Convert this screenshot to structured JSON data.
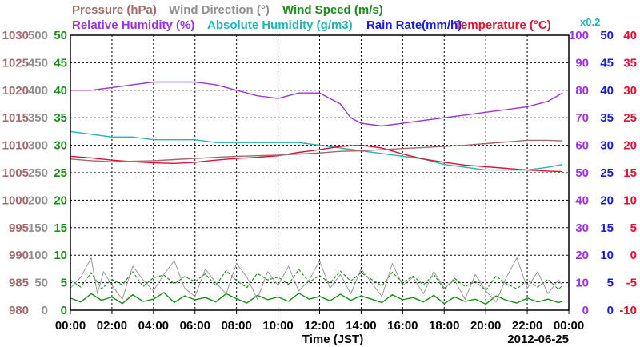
{
  "colors": {
    "pressure": "#a06a6a",
    "wind_direction": "#909090",
    "wind_speed": "#1a8c1a",
    "rel_humidity": "#9933dd",
    "abs_humidity": "#22b3b3",
    "rain": "#1a1add",
    "temperature": "#e01030",
    "axis": "#000000"
  },
  "chart_data": {
    "type": "line",
    "date": "2012-06-25",
    "xlabel": "Time (JST)",
    "x_ticks": [
      "00:00",
      "02:00",
      "04:00",
      "06:00",
      "08:00",
      "10:00",
      "12:00",
      "14:00",
      "16:00",
      "18:00",
      "20:00",
      "22:00",
      "00:00"
    ],
    "xlim_hours": [
      0,
      24
    ],
    "legend_row1": [
      {
        "label": "Pressure (hPa)",
        "color_key": "pressure"
      },
      {
        "label": "Wind Direction (°)",
        "color_key": "wind_direction"
      },
      {
        "label": "Wind Speed (m/s)",
        "color_key": "wind_speed"
      }
    ],
    "legend_row2": [
      {
        "label": "Relative Humidity (%)",
        "color_key": "rel_humidity"
      },
      {
        "label": "Absolute Humidity (g/m3)",
        "color_key": "abs_humidity"
      },
      {
        "label": "Rain Rate(mm/h)",
        "color_key": "rain"
      },
      {
        "label": "Temperature (°C)",
        "color_key": "temperature"
      }
    ],
    "scale_note": "x0.2",
    "axes": {
      "pressure": {
        "ticks": [
          "1030",
          "1025",
          "1020",
          "1015",
          "1010",
          "1005",
          "1000",
          "995",
          "990",
          "985",
          "980"
        ],
        "range": [
          980,
          1030
        ]
      },
      "wind_direction": {
        "ticks": [
          "500",
          "450",
          "400",
          "350",
          "300",
          "250",
          "200",
          "150",
          "100",
          "50",
          "0"
        ],
        "range": [
          0,
          500
        ]
      },
      "wind_speed": {
        "ticks": [
          "50",
          "45",
          "40",
          "35",
          "30",
          "25",
          "20",
          "15",
          "10",
          "5",
          "0"
        ],
        "range": [
          0,
          50
        ]
      },
      "rel_humidity": {
        "ticks": [
          "100",
          "90",
          "80",
          "70",
          "60",
          "50",
          "40",
          "30",
          "20",
          "10",
          "0"
        ],
        "range": [
          0,
          100
        ]
      },
      "rain": {
        "ticks": [
          "50",
          "45",
          "40",
          "35",
          "30",
          "25",
          "20",
          "15",
          "10",
          "5",
          "0"
        ],
        "range": [
          0,
          50
        ]
      },
      "temperature": {
        "ticks": [
          "40",
          "35",
          "30",
          "25",
          "20",
          "15",
          "10",
          "5",
          "0",
          "-5",
          "-10"
        ],
        "range": [
          -10,
          40
        ]
      }
    },
    "series": [
      {
        "name": "Relative Humidity",
        "axis": "rel_humidity",
        "color_key": "rel_humidity",
        "x": [
          0,
          1,
          2,
          3,
          4,
          5,
          6,
          7,
          8,
          9,
          10,
          11,
          12,
          13,
          13.5,
          14,
          15,
          16,
          17,
          18,
          19,
          20,
          21,
          22,
          23,
          23.7
        ],
        "y": [
          80,
          80,
          81,
          82,
          83,
          83,
          83,
          82,
          80,
          78,
          77,
          79,
          79,
          75,
          70,
          68,
          67,
          68,
          69,
          70,
          71,
          72,
          73,
          74,
          76,
          79
        ]
      },
      {
        "name": "Absolute Humidity",
        "axis": "rel_humidity",
        "color_key": "abs_humidity",
        "x": [
          0,
          1,
          2,
          3,
          4,
          5,
          6,
          7,
          8,
          9,
          10,
          11,
          12,
          13,
          14,
          15,
          16,
          17,
          18,
          19,
          20,
          21,
          22,
          23,
          23.7
        ],
        "y": [
          65,
          64,
          63,
          63,
          62,
          62,
          62,
          61,
          61,
          61,
          61,
          61,
          60,
          59,
          58,
          57,
          56,
          55,
          53,
          52,
          51,
          51,
          51,
          52,
          53
        ]
      },
      {
        "name": "Temperature",
        "axis": "temperature",
        "color_key": "temperature",
        "x": [
          0,
          1,
          2,
          3,
          4,
          5,
          6,
          7,
          8,
          9,
          10,
          11,
          12,
          13,
          14,
          15,
          16,
          17,
          18,
          19,
          20,
          21,
          22,
          23,
          23.7
        ],
        "y": [
          18.0,
          17.7,
          17.3,
          17.0,
          16.8,
          16.7,
          16.9,
          17.3,
          17.6,
          17.8,
          18.1,
          18.7,
          19.2,
          19.8,
          20.0,
          19.5,
          18.4,
          17.5,
          16.9,
          16.4,
          16.1,
          15.8,
          15.5,
          15.3,
          15.2
        ]
      },
      {
        "name": "Pressure",
        "axis": "pressure",
        "color_key": "pressure",
        "x": [
          0,
          1,
          2,
          3,
          4,
          5,
          6,
          7,
          8,
          9,
          10,
          11,
          12,
          13,
          14,
          15,
          16,
          17,
          18,
          19,
          20,
          21,
          22,
          23,
          23.7
        ],
        "y": [
          1007.5,
          1007.2,
          1007.0,
          1007.1,
          1007.2,
          1007.4,
          1007.6,
          1007.8,
          1008.0,
          1008.1,
          1008.2,
          1008.4,
          1008.6,
          1008.9,
          1009.0,
          1009.2,
          1009.4,
          1009.6,
          1009.8,
          1010.0,
          1010.3,
          1010.6,
          1010.9,
          1010.9,
          1010.8
        ]
      },
      {
        "name": "Wind Speed (average)",
        "axis": "wind_speed",
        "color_key": "wind_speed",
        "style": "solid",
        "x": [
          0,
          0.5,
          1,
          1.5,
          2,
          2.5,
          3,
          3.5,
          4,
          4.5,
          5,
          5.5,
          6,
          6.5,
          7,
          7.5,
          8,
          8.5,
          9,
          9.5,
          10,
          10.5,
          11,
          11.5,
          12,
          12.5,
          13,
          13.5,
          14,
          14.5,
          15,
          15.5,
          16,
          16.5,
          17,
          17.5,
          18,
          18.5,
          19,
          19.5,
          20,
          20.5,
          21,
          21.5,
          22,
          22.5,
          23,
          23.5,
          23.7
        ],
        "y": [
          2.2,
          1.5,
          3.0,
          1.8,
          2.4,
          1.2,
          2.8,
          1.6,
          2.0,
          3.2,
          1.4,
          2.6,
          1.9,
          2.3,
          1.5,
          3.0,
          2.1,
          1.3,
          2.7,
          1.9,
          2.4,
          1.6,
          3.1,
          2.0,
          2.5,
          1.7,
          2.9,
          1.8,
          2.6,
          2.0,
          1.4,
          2.8,
          1.9,
          2.3,
          1.5,
          2.7,
          1.2,
          2.4,
          1.6,
          2.0,
          1.1,
          2.6,
          1.8,
          1.3,
          2.2,
          1.5,
          2.0,
          1.4,
          1.6
        ]
      },
      {
        "name": "Wind Speed (gust)",
        "axis": "wind_speed",
        "color_key": "wind_speed",
        "style": "dashed",
        "x": [
          0,
          0.5,
          1,
          1.5,
          2,
          2.5,
          3,
          3.5,
          4,
          4.5,
          5,
          5.5,
          6,
          6.5,
          7,
          7.5,
          8,
          8.5,
          9,
          9.5,
          10,
          10.5,
          11,
          11.5,
          12,
          12.5,
          13,
          13.5,
          14,
          14.5,
          15,
          15.5,
          16,
          16.5,
          17,
          17.5,
          18,
          18.5,
          19,
          19.5,
          20,
          20.5,
          21,
          21.5,
          22,
          22.5,
          23,
          23.5,
          23.7
        ],
        "y": [
          5.5,
          4.2,
          6.8,
          3.9,
          5.6,
          4.6,
          7.0,
          4.3,
          5.9,
          6.4,
          4.8,
          6.1,
          5.2,
          6.6,
          4.5,
          7.2,
          5.4,
          4.1,
          6.7,
          5.5,
          6.0,
          4.7,
          7.4,
          5.1,
          6.3,
          4.9,
          7.1,
          5.3,
          6.8,
          5.6,
          4.4,
          6.9,
          5.0,
          6.2,
          4.6,
          6.5,
          3.8,
          5.8,
          4.3,
          5.2,
          3.6,
          6.2,
          4.8,
          3.9,
          5.4,
          4.2,
          5.6,
          3.8,
          4.5
        ]
      },
      {
        "name": "Wind Direction",
        "axis": "wind_direction",
        "color_key": "wind_direction",
        "style": "thin",
        "x": [
          0,
          0.5,
          1,
          1.3,
          1.6,
          2,
          2.5,
          3,
          3.5,
          4,
          4.5,
          5,
          5.5,
          6,
          6.5,
          7,
          7.5,
          8,
          8.5,
          9,
          9.5,
          10,
          10.5,
          11,
          11.5,
          12,
          12.5,
          13,
          13.5,
          14,
          14.5,
          15,
          15.5,
          16,
          16.5,
          17,
          17.5,
          18,
          18.5,
          19,
          19.5,
          20,
          20.5,
          21,
          21.5,
          22,
          22.5,
          23,
          23.5,
          23.7
        ],
        "y": [
          40,
          60,
          95,
          30,
          70,
          45,
          20,
          80,
          55,
          35,
          65,
          90,
          40,
          25,
          75,
          50,
          30,
          85,
          60,
          20,
          70,
          45,
          80,
          35,
          55,
          90,
          40,
          65,
          30,
          75,
          50,
          25,
          85,
          45,
          60,
          30,
          70,
          40,
          55,
          20,
          65,
          35,
          15,
          60,
          95,
          40,
          70,
          30,
          55,
          45
        ]
      }
    ]
  }
}
